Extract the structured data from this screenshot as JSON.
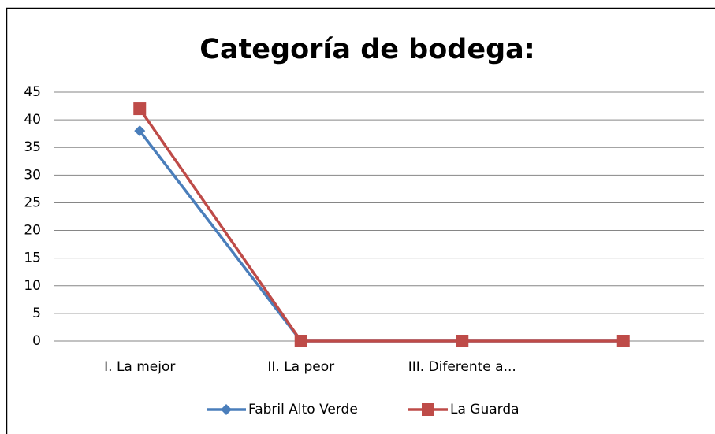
{
  "chart_data": {
    "type": "line",
    "title": "Categoría de bodega:",
    "categories": [
      "I. La mejor",
      "II. La peor",
      "III. Diferente a...",
      null
    ],
    "series": [
      {
        "name": "Fabril Alto Verde",
        "color": "#4a7ebb",
        "marker": "diamond",
        "values": [
          38,
          0,
          0,
          0
        ]
      },
      {
        "name": "La Guarda",
        "color": "#be4b48",
        "marker": "square",
        "values": [
          42,
          0,
          0,
          0
        ]
      }
    ],
    "ylim": [
      0,
      45
    ],
    "yticks": [
      0,
      5,
      10,
      15,
      20,
      25,
      30,
      35,
      40,
      45
    ],
    "grid": true,
    "legend": "bottom"
  }
}
